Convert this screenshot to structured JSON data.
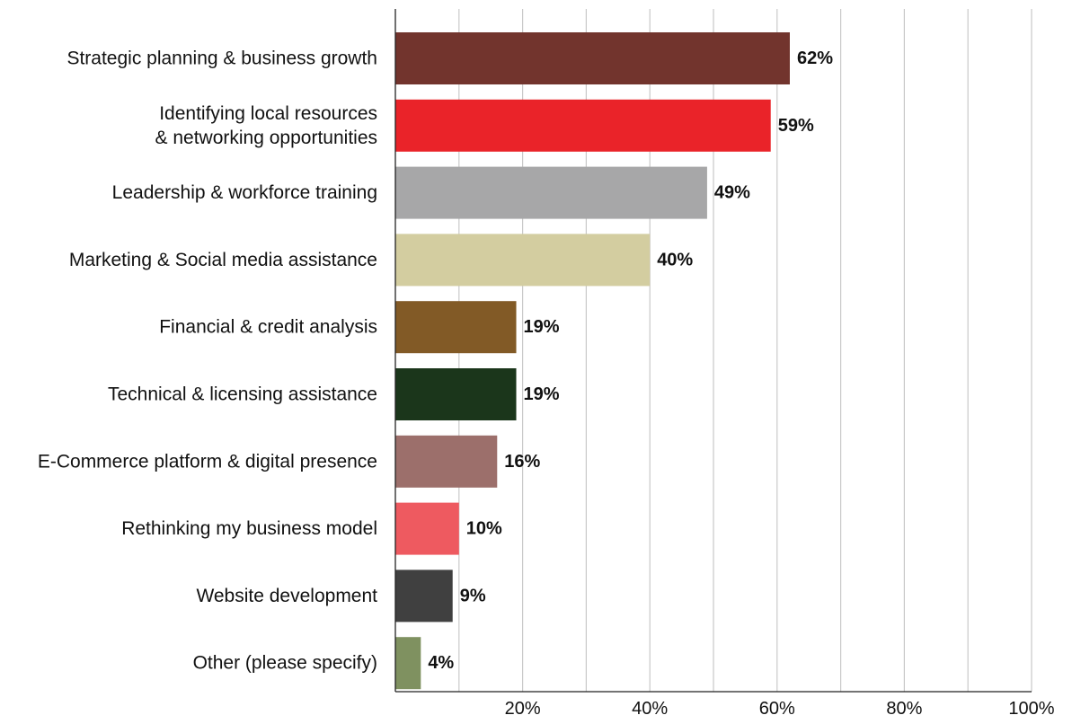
{
  "chart_data": {
    "type": "bar",
    "orientation": "horizontal",
    "categories": [
      [
        "Strategic planning & business growth"
      ],
      [
        "Identifying local resources",
        "& networking opportunities"
      ],
      [
        "Leadership & workforce training"
      ],
      [
        "Marketing & Social media assistance"
      ],
      [
        "Financial & credit analysis"
      ],
      [
        "Technical & licensing assistance"
      ],
      [
        "E-Commerce platform & digital presence"
      ],
      [
        "Rethinking my business model"
      ],
      [
        "Website development"
      ],
      [
        "Other (please specify)"
      ]
    ],
    "values": [
      62,
      59,
      49,
      40,
      19,
      19,
      16,
      10,
      9,
      4
    ],
    "value_labels": [
      "62%",
      "59%",
      "49%",
      "40%",
      "19%",
      "19%",
      "16%",
      "10%",
      "9%",
      "4%"
    ],
    "colors": [
      "#72342d",
      "#ea2329",
      "#a7a7a8",
      "#d3cda0",
      "#825a26",
      "#1b361b",
      "#9c6f6b",
      "#ee5a60",
      "#404040",
      "#7f9160"
    ],
    "xlim": [
      0,
      100
    ],
    "x_ticks": [
      20,
      40,
      60,
      80,
      100
    ],
    "x_tick_labels": [
      "20%",
      "40%",
      "60%",
      "80%",
      "100%"
    ],
    "grid": true,
    "grid_step": 10,
    "title": "",
    "xlabel": "",
    "ylabel": ""
  }
}
